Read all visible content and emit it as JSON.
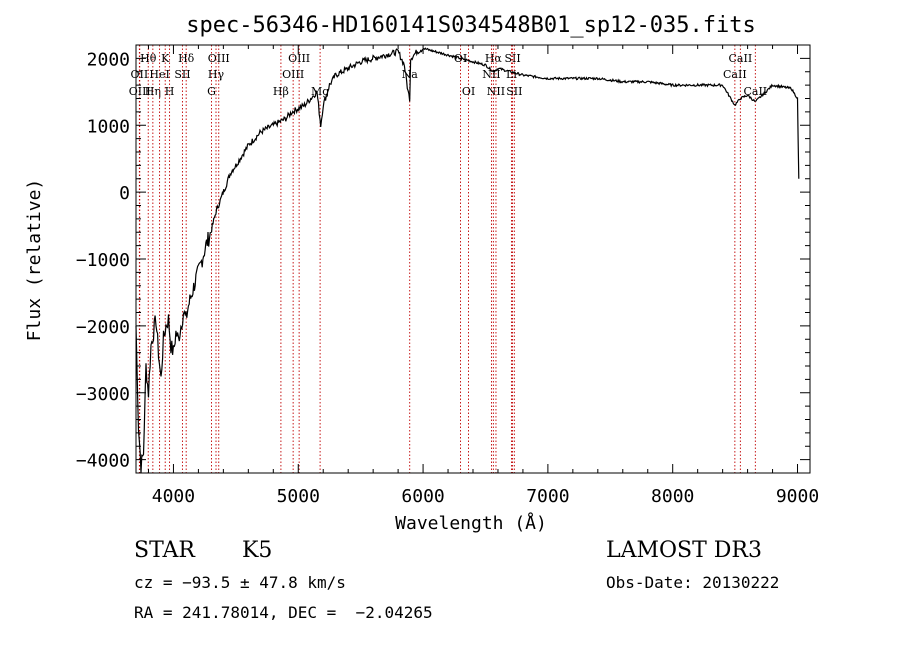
{
  "chart_data": {
    "type": "line",
    "title": "spec-56346-HD160141S034548B01_sp12-035.fits",
    "xlabel": "Wavelength (Å)",
    "ylabel": "Flux (relative)",
    "xlim": [
      3700,
      9100
    ],
    "ylim": [
      -4200,
      2200
    ],
    "xticks": [
      4000,
      5000,
      6000,
      7000,
      8000,
      9000
    ],
    "xtick_labels": [
      "4000",
      "5000",
      "6000",
      "7000",
      "8000",
      "9000"
    ],
    "yticks": [
      -4000,
      -3000,
      -2000,
      -1000,
      0,
      1000,
      2000
    ],
    "ytick_labels": [
      "−4000",
      "−3000",
      "−2000",
      "−1000",
      "0",
      "1000",
      "2000"
    ],
    "series": [
      {
        "x": [
          3700,
          3720,
          3740,
          3760,
          3780,
          3800,
          3820,
          3840,
          3860,
          3880,
          3900,
          3920,
          3940,
          3960,
          3980,
          4000,
          4020,
          4040,
          4060,
          4080,
          4100,
          4120,
          4150,
          4180,
          4200,
          4230,
          4260,
          4300,
          4340,
          4380,
          4420,
          4460,
          4500,
          4550,
          4600,
          4650,
          4700,
          4750,
          4800,
          4850,
          4900,
          4950,
          5000,
          5050,
          5100,
          5150,
          5180,
          5200,
          5250,
          5300,
          5400,
          5500,
          5600,
          5700,
          5800,
          5850,
          5880,
          5893,
          5900,
          5950,
          6000,
          6100,
          6200,
          6300,
          6400,
          6500,
          6563,
          6600,
          6700,
          6800,
          7000,
          7200,
          7400,
          7600,
          7800,
          8000,
          8200,
          8400,
          8498,
          8542,
          8600,
          8662,
          8800,
          8950,
          9000,
          9010
        ],
        "y": [
          -2000,
          -3500,
          -4100,
          -3900,
          -2600,
          -3000,
          -2300,
          -2100,
          -1900,
          -2400,
          -2800,
          -2200,
          -2000,
          -1900,
          -2300,
          -2400,
          -2100,
          -2200,
          -2000,
          -1800,
          -1900,
          -1700,
          -1500,
          -1300,
          -1200,
          -1000,
          -800,
          -600,
          -300,
          -100,
          100,
          300,
          400,
          550,
          700,
          800,
          900,
          950,
          1000,
          1050,
          1100,
          1200,
          1250,
          1300,
          1400,
          1500,
          1000,
          1300,
          1600,
          1750,
          1850,
          1950,
          2000,
          2050,
          2100,
          1900,
          1500,
          1400,
          2000,
          2100,
          2150,
          2100,
          2050,
          2000,
          1950,
          1900,
          1800,
          1850,
          1800,
          1750,
          1700,
          1700,
          1700,
          1650,
          1650,
          1600,
          1600,
          1600,
          1300,
          1400,
          1450,
          1350,
          1600,
          1550,
          1400,
          200
        ]
      }
    ],
    "spectral_lines": [
      {
        "label": "Hθ",
        "wavelength": 3798,
        "row": 1
      },
      {
        "label": "OII",
        "wavelength": 3727,
        "row": 2
      },
      {
        "label": "OIII",
        "wavelength": 3730,
        "row": 3
      },
      {
        "label": "Hη",
        "wavelength": 3835,
        "row": 3
      },
      {
        "label": "K",
        "wavelength": 3934,
        "row": 1
      },
      {
        "label": "HeI",
        "wavelength": 3889,
        "row": 2
      },
      {
        "label": "H",
        "wavelength": 3969,
        "row": 3
      },
      {
        "label": "Hδ",
        "wavelength": 4102,
        "row": 1
      },
      {
        "label": "SII",
        "wavelength": 4072,
        "row": 2
      },
      {
        "label": "OIII",
        "wavelength": 4363,
        "row": 1
      },
      {
        "label": "Hγ",
        "wavelength": 4341,
        "row": 2
      },
      {
        "label": "G",
        "wavelength": 4305,
        "row": 3
      },
      {
        "label": "OIII",
        "wavelength": 5007,
        "row": 1
      },
      {
        "label": "OIII",
        "wavelength": 4959,
        "row": 2
      },
      {
        "label": "Hβ",
        "wavelength": 4861,
        "row": 3
      },
      {
        "label": "Mg",
        "wavelength": 5175,
        "row": 3
      },
      {
        "label": "Na",
        "wavelength": 5893,
        "row": 2
      },
      {
        "label": "OI",
        "wavelength": 6300,
        "row": 1
      },
      {
        "label": "OI",
        "wavelength": 6364,
        "row": 3
      },
      {
        "label": "Hα",
        "wavelength": 6563,
        "row": 1
      },
      {
        "label": "NII",
        "wavelength": 6548,
        "row": 2
      },
      {
        "label": "NII",
        "wavelength": 6584,
        "row": 3
      },
      {
        "label": "SII",
        "wavelength": 6717,
        "row": 1
      },
      {
        "label": "Li",
        "wavelength": 6708,
        "row": 2
      },
      {
        "label": "SII",
        "wavelength": 6731,
        "row": 3
      },
      {
        "label": "CaII",
        "wavelength": 8542,
        "row": 1
      },
      {
        "label": "CaII",
        "wavelength": 8498,
        "row": 2
      },
      {
        "label": "CaII",
        "wavelength": 8662,
        "row": 3
      }
    ]
  },
  "info": {
    "object_class": "STAR",
    "subclass": "K5",
    "survey": "LAMOST DR3",
    "redshift": "cz = −93.5 ± 47.8 km/s",
    "obs_date": "Obs-Date: 20130222",
    "coords": "RA = 241.78014, DEC =  −2.04265"
  }
}
